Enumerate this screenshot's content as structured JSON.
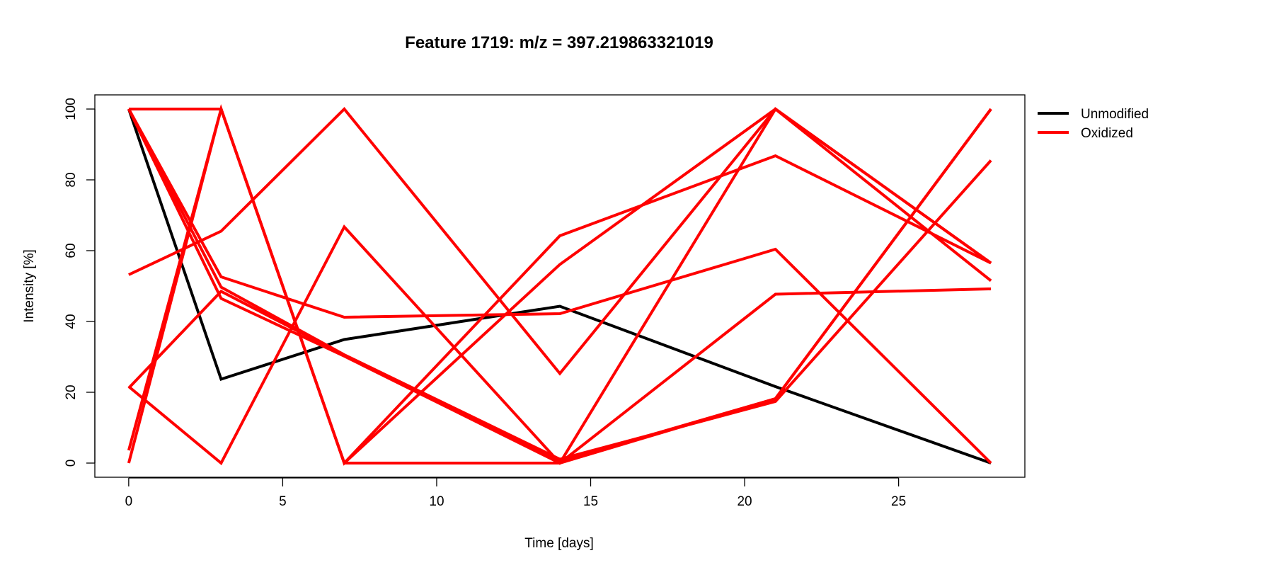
{
  "chart_data": {
    "type": "line",
    "title": "Feature 1719: m/z = 397.219863321019",
    "xlabel": "Time [days]",
    "ylabel": "Intensity [%]",
    "xlim": [
      -1.1,
      29.1
    ],
    "ylim": [
      -4,
      104
    ],
    "x": [
      0,
      3,
      7,
      14,
      21,
      28
    ],
    "xticks": [
      0,
      5,
      10,
      15,
      20,
      25
    ],
    "yticks": [
      0,
      20,
      40,
      60,
      80,
      100
    ],
    "grid": false,
    "legend_position": "top-right, outside plot area",
    "legend": [
      {
        "label": "Unmodified",
        "color": "#000000"
      },
      {
        "label": "Oxidized",
        "color": "#ff0000"
      }
    ],
    "series": [
      {
        "group": "Unmodified",
        "color": "#000000",
        "values": [
          100,
          23.7,
          34.9,
          44.3,
          21.6,
          0
        ]
      },
      {
        "group": "Oxidized",
        "color": "#ff0000",
        "values": [
          100,
          100,
          0,
          64.2,
          86.8,
          56.5
        ]
      },
      {
        "group": "Oxidized",
        "color": "#ff0000",
        "values": [
          100,
          52.6,
          41.2,
          42.2,
          60.4,
          0
        ]
      },
      {
        "group": "Oxidized",
        "color": "#ff0000",
        "values": [
          100,
          46.5,
          30.2,
          0,
          18.2,
          100
        ]
      },
      {
        "group": "Oxidized",
        "color": "#ff0000",
        "values": [
          100,
          49.7,
          30.6,
          1.1,
          17.4,
          85.5
        ]
      },
      {
        "group": "Oxidized",
        "color": "#ff0000",
        "values": [
          53.2,
          65.5,
          100,
          25.3,
          100,
          56.5
        ]
      },
      {
        "group": "Oxidized",
        "color": "#ff0000",
        "values": [
          21.6,
          0,
          66.7,
          0,
          47.7,
          49.2
        ]
      },
      {
        "group": "Oxidized",
        "color": "#ff0000",
        "values": [
          0,
          100,
          0,
          56.1,
          100,
          51.5
        ]
      },
      {
        "group": "Oxidized",
        "color": "#ff0000",
        "values": [
          3.6,
          100,
          0,
          0,
          100,
          56.5
        ]
      },
      {
        "group": "Oxidized",
        "color": "#ff0000",
        "values": [
          21.2,
          48.5,
          30.5,
          0.5,
          18.2,
          100
        ]
      }
    ]
  }
}
